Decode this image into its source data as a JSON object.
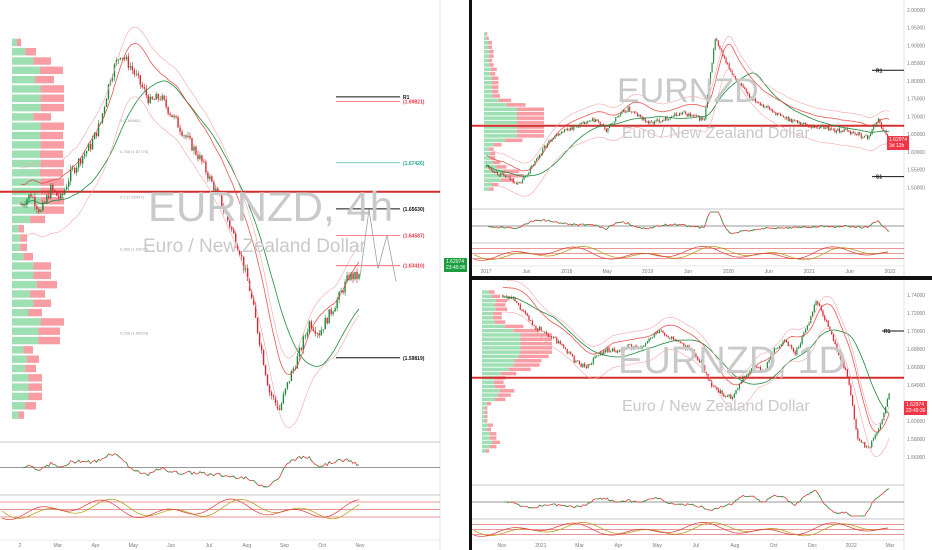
{
  "panes": [
    {
      "id": "h4",
      "watermark": "EURNZD, 4h",
      "subtitle": "Euro / New Zealand Dollar",
      "price_badge": "1.62974",
      "price_badge_sub": "23:49:36",
      "x_ticks": [
        "2",
        "Mar",
        "Apr",
        "May",
        "Jun",
        "Jul",
        "Aug",
        "Sep",
        "Oct",
        "Nov"
      ],
      "levels": [
        {
          "label": "R1",
          "value": 1.7,
          "color": "#111111"
        },
        {
          "label": "(1.69821)",
          "value": 1.69821,
          "color": "#f23645"
        },
        {
          "label": "(1.67426)",
          "value": 1.67426,
          "color": "#22ab94"
        },
        {
          "label": "(1.65630)",
          "value": 1.6563,
          "color": "#111111"
        },
        {
          "label": "(1.64587)",
          "value": 1.64587,
          "color": "#f23645"
        },
        {
          "label": "(1.63410)",
          "value": 1.6341,
          "color": "#f23645"
        },
        {
          "label": "(1.59819)",
          "value": 1.59819,
          "color": "#111111"
        }
      ],
      "fib_labels": [
        "1 (1.68982)",
        "0.786 (1.67776)",
        "0.5 (1.65997)",
        "0.382 (1.63973)",
        "0.236 (1.60693)"
      ]
    },
    {
      "id": "w",
      "watermark": "EURNZD",
      "subtitle": "Euro / New Zealand Dollar",
      "price_badge": "1.62974",
      "price_badge_sub": "3d 12h",
      "x_ticks": [
        "2017",
        "Jun",
        "2018",
        "May",
        "2019",
        "Jun",
        "2020",
        "Jun",
        "2021",
        "Jun",
        "2022"
      ],
      "y_ticks": [
        "2.00000",
        "1.95000",
        "1.90000",
        "1.85000",
        "1.80000",
        "1.75000",
        "1.70000",
        "1.65000",
        "1.60000",
        "1.55000",
        "1.50000",
        "1.45000"
      ],
      "levels": [
        {
          "label": "R1",
          "value": 1.83,
          "color": "#111111"
        },
        {
          "label": "S1",
          "value": 1.53,
          "color": "#111111"
        }
      ]
    },
    {
      "id": "d",
      "watermark": "EURNZD, 1D",
      "subtitle": "Euro / New Zealand Dollar",
      "price_badge": "1.62974",
      "price_badge_sub": "23:49:36",
      "x_ticks": [
        "Nov",
        "2021",
        "Mar",
        "Apr",
        "May",
        "Jul",
        "Aug",
        "Oct",
        "Dec",
        "2022",
        "Mar"
      ],
      "y_ticks": [
        "1.74000",
        "1.72000",
        "1.70000",
        "1.68000",
        "1.66000",
        "1.64000",
        "1.62000",
        "1.60000",
        "1.58000",
        "1.56000",
        "1.54000"
      ],
      "levels": [
        {
          "label": "R1",
          "value": 1.7,
          "color": "#111111"
        }
      ]
    }
  ],
  "chart_data": [
    {
      "type": "candlestick",
      "pane": "h4",
      "title": "EURNZD, 4h",
      "subtitle": "Euro / New Zealand Dollar",
      "ylim": [
        1.57,
        1.73
      ],
      "series": [
        {
          "name": "",
          "values": [
            1.658,
            1.662,
            1.655,
            1.664,
            1.66,
            1.67,
            1.676,
            1.681,
            1.69,
            1.708,
            1.717,
            1.712,
            1.705,
            1.698,
            1.7,
            1.694,
            1.688,
            1.682,
            1.676,
            1.668,
            1.66,
            1.65,
            1.64,
            1.625,
            1.605,
            1.585,
            1.578,
            1.59,
            1.6,
            1.612,
            1.608,
            1.615,
            1.622,
            1.63,
            1.6297
          ]
        }
      ],
      "projection": [
        1.6297,
        1.656,
        1.633,
        1.646,
        1.628
      ]
    },
    {
      "type": "candlestick",
      "pane": "w",
      "title": "EURNZD",
      "subtitle": "Euro / New Zealand Dollar",
      "ylim": [
        1.45,
        2.0
      ],
      "series": [
        {
          "name": "",
          "values": [
            1.56,
            1.54,
            1.525,
            1.51,
            1.55,
            1.6,
            1.64,
            1.66,
            1.67,
            1.68,
            1.69,
            1.66,
            1.7,
            1.72,
            1.7,
            1.68,
            1.69,
            1.7,
            1.71,
            1.7,
            1.69,
            1.92,
            1.85,
            1.8,
            1.76,
            1.74,
            1.72,
            1.7,
            1.69,
            1.68,
            1.67,
            1.67,
            1.66,
            1.66,
            1.65,
            1.64,
            1.69,
            1.6297
          ]
        }
      ]
    },
    {
      "type": "candlestick",
      "pane": "d",
      "title": "EURNZD, 1D",
      "subtitle": "Euro / New Zealand Dollar",
      "ylim": [
        1.54,
        1.75
      ],
      "series": [
        {
          "name": "",
          "values": [
            1.74,
            1.735,
            1.72,
            1.705,
            1.7,
            1.69,
            1.68,
            1.665,
            1.66,
            1.672,
            1.68,
            1.676,
            1.683,
            1.68,
            1.69,
            1.7,
            1.693,
            1.685,
            1.68,
            1.665,
            1.64,
            1.63,
            1.625,
            1.648,
            1.66,
            1.655,
            1.68,
            1.69,
            1.676,
            1.7,
            1.734,
            1.71,
            1.68,
            1.65,
            1.58,
            1.57,
            1.59,
            1.6297
          ]
        }
      ]
    }
  ]
}
